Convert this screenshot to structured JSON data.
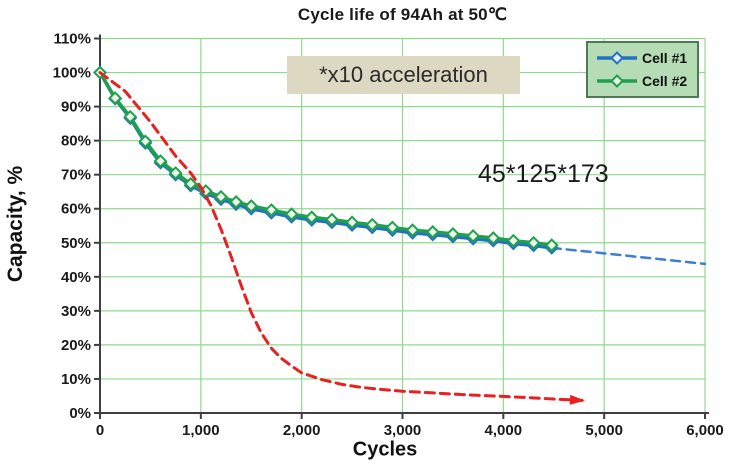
{
  "figure": {
    "background": "#FFFFFF"
  },
  "chart_data": {
    "type": "line",
    "title": "Cycle life of 94Ah at 50℃",
    "xlabel": "Cycles",
    "ylabel": "Capacity, %",
    "xlim": [
      0,
      6000
    ],
    "ylim": [
      0,
      110
    ],
    "grid": true,
    "grid_color": "#8FD98F",
    "axis_color": "#3F3F3F",
    "x_ticks": {
      "values": [
        0,
        1000,
        2000,
        3000,
        4000,
        5000,
        6000
      ],
      "labels": [
        "0",
        "1,000",
        "2,000",
        "3,000",
        "4,000",
        "5,000",
        "6,000"
      ]
    },
    "y_ticks": {
      "values": [
        0,
        10,
        20,
        30,
        40,
        50,
        60,
        70,
        80,
        90,
        100,
        110
      ],
      "labels": [
        "0%",
        "10%",
        "20%",
        "30%",
        "40%",
        "50%",
        "60%",
        "70%",
        "80%",
        "90%",
        "100%",
        "110%"
      ]
    },
    "legend": {
      "position": "top-right",
      "background": "#B5DCB5",
      "border": "#4C7A57",
      "entries": [
        "Cell #1",
        "Cell #2"
      ]
    },
    "series": [
      {
        "name": "Cell #1 projection",
        "color": "#3A7FD5",
        "style": "dashed",
        "line_width": 2.5,
        "legend": false,
        "x": [
          4480,
          6000
        ],
        "y": [
          48.5,
          43.8
        ]
      },
      {
        "name": "Cell #1",
        "color": "#2272C3",
        "style": "solid",
        "marker": "diamond",
        "marker_fill": "#E6EEF8",
        "line_width": 3.5,
        "legend": true,
        "x": [
          0,
          150,
          300,
          450,
          600,
          750,
          900,
          1050,
          1200,
          1350,
          1500,
          1700,
          1900,
          2100,
          2300,
          2500,
          2700,
          2900,
          3100,
          3300,
          3500,
          3700,
          3900,
          4100,
          4300,
          4480
        ],
        "y": [
          100,
          92.3,
          86.6,
          79.3,
          73.5,
          70.0,
          66.8,
          64.5,
          62.8,
          61.3,
          60.0,
          58.8,
          57.6,
          56.7,
          56.0,
          55.2,
          54.5,
          53.7,
          52.9,
          52.4,
          51.8,
          51.2,
          50.6,
          49.8,
          49.2,
          48.5
        ]
      },
      {
        "name": "Cell #2",
        "color": "#1FA04E",
        "style": "solid",
        "marker": "diamond",
        "marker_fill": "#ECF6E7",
        "line_width": 3.5,
        "legend": true,
        "x": [
          0,
          150,
          300,
          450,
          600,
          750,
          900,
          1050,
          1200,
          1350,
          1500,
          1700,
          1900,
          2100,
          2300,
          2500,
          2700,
          2900,
          3100,
          3300,
          3500,
          3700,
          3900,
          4100,
          4300,
          4480
        ],
        "y": [
          100,
          92.5,
          87.0,
          79.8,
          74.0,
          70.5,
          67.3,
          65.2,
          63.5,
          62.0,
          60.8,
          59.6,
          58.4,
          57.5,
          56.8,
          56.0,
          55.3,
          54.5,
          53.7,
          53.2,
          52.6,
          52.0,
          51.4,
          50.6,
          50.0,
          49.3
        ]
      },
      {
        "name": "x10 accelerated reference",
        "color": "#E8201F",
        "style": "dashed",
        "line_width": 3,
        "arrow_end": true,
        "legend": false,
        "x": [
          0,
          250,
          500,
          750,
          900,
          1000,
          1100,
          1200,
          1300,
          1400,
          1500,
          1600,
          1700,
          1800,
          1900,
          2000,
          2200,
          2400,
          2600,
          2800,
          3000,
          3300,
          3600,
          3900,
          4200,
          4500,
          4780
        ],
        "y": [
          100,
          94.5,
          85.5,
          75.5,
          70.5,
          66.3,
          61.0,
          54.0,
          46.0,
          37.5,
          29.5,
          23.5,
          19.0,
          16.0,
          13.8,
          11.8,
          9.8,
          8.4,
          7.5,
          6.9,
          6.4,
          5.9,
          5.4,
          5.0,
          4.6,
          4.1,
          3.7
        ]
      }
    ]
  },
  "annotations": {
    "acceleration_note": "*x10 acceleration",
    "acceleration_note_bg": "#DCD8C2",
    "dimensions_note": "45*125*173"
  }
}
